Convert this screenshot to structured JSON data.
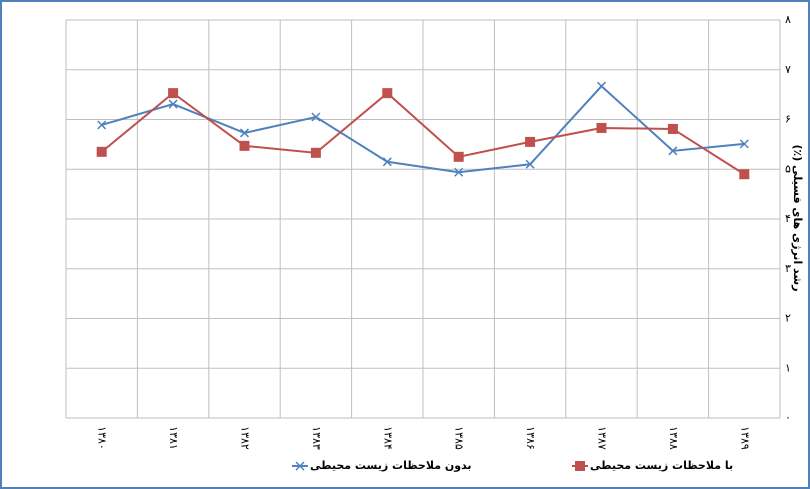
{
  "chart_data": {
    "type": "line",
    "y_label": "رشد انرژی های فسیلی (٪)",
    "categories": [
      "۱۳۸۰",
      "۱۳۸۱",
      "۱۳۸۲",
      "۱۳۸۳",
      "۱۳۸۴",
      "۱۳۸۵",
      "۱۳۸۶",
      "۱۳۸۷",
      "۱۳۸۸",
      "۱۳۸۹"
    ],
    "series": [
      {
        "name": "بدون ملاحظات زیست محیطی",
        "color": "#4f81bd",
        "marker": "x",
        "values": [
          5.89,
          6.31,
          5.73,
          6.05,
          5.15,
          4.94,
          5.1,
          6.67,
          5.37,
          5.51
        ]
      },
      {
        "name": "با ملاحظات زیست محیطی",
        "color": "#c0504d",
        "marker": "square",
        "values": [
          5.35,
          6.53,
          5.47,
          5.33,
          6.53,
          5.25,
          5.55,
          5.83,
          5.81,
          4.9
        ]
      }
    ],
    "ylim": [
      0,
      8
    ],
    "yticks": [
      {
        "value": 0,
        "label": "۰"
      },
      {
        "value": 1,
        "label": "۱"
      },
      {
        "value": 2,
        "label": "۲"
      },
      {
        "value": 3,
        "label": "۳"
      },
      {
        "value": 4,
        "label": "۴"
      },
      {
        "value": 5,
        "label": "۵"
      },
      {
        "value": 6,
        "label": "۶"
      },
      {
        "value": 7,
        "label": "۷"
      },
      {
        "value": 8,
        "label": "۸"
      }
    ],
    "grid": true
  }
}
